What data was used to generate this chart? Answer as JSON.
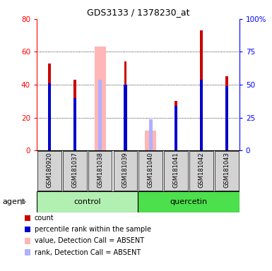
{
  "title": "GDS3133 / 1378230_at",
  "samples": [
    "GSM180920",
    "GSM181037",
    "GSM181038",
    "GSM181039",
    "GSM181040",
    "GSM181041",
    "GSM181042",
    "GSM181043"
  ],
  "red_values": [
    53,
    43,
    0,
    54,
    0,
    30,
    73,
    45
  ],
  "blue_values": [
    41,
    32,
    0,
    40,
    0,
    27,
    43,
    39
  ],
  "pink_values": [
    0,
    0,
    63,
    0,
    12,
    0,
    0,
    0
  ],
  "lightblue_values": [
    0,
    0,
    43,
    0,
    19,
    0,
    0,
    0
  ],
  "ylim": [
    0,
    80
  ],
  "yticks": [
    0,
    20,
    40,
    60,
    80
  ],
  "y2ticks": [
    0,
    25,
    50,
    75,
    100
  ],
  "y2labels": [
    "0",
    "25",
    "50",
    "75",
    "100%"
  ],
  "pink_bar_width": 0.45,
  "narrow_bar_width": 0.1,
  "control_color_light": "#b2f0b2",
  "control_color": "#b2f0b2",
  "quercetin_color": "#4de04d",
  "sample_bg_color": "#d3d3d3",
  "legend_items": [
    {
      "label": "count",
      "color": "#cc0000"
    },
    {
      "label": "percentile rank within the sample",
      "color": "#0000cc"
    },
    {
      "label": "value, Detection Call = ABSENT",
      "color": "#ffb6b6"
    },
    {
      "label": "rank, Detection Call = ABSENT",
      "color": "#b0b0ff"
    }
  ]
}
